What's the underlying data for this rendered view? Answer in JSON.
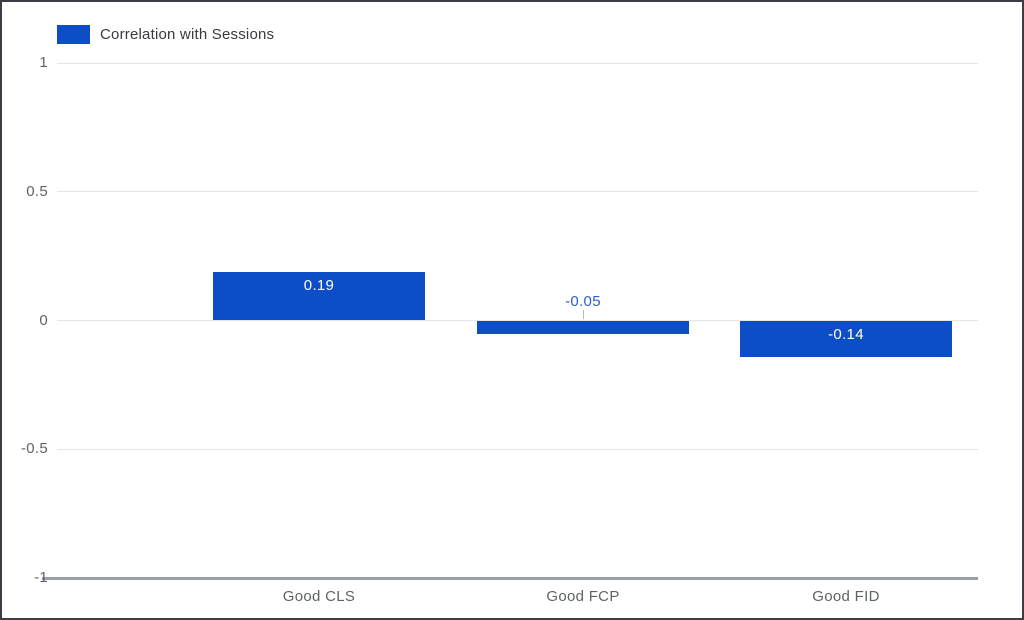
{
  "legend": {
    "label": "Correlation with Sessions"
  },
  "colors": {
    "bar": "#0d4dc6",
    "gridline": "#e5e5e9",
    "axis_line": "#9ba0a8",
    "tick_text": "#5f6368",
    "x_label_text": "#5f6368",
    "legend_text": "#3a3b40",
    "value_label_inside": "#ffffff",
    "value_label_outside": "#2b5ecf",
    "stem": "#b4b9c1",
    "frame_border": "#3c3c46",
    "background": "#ffffff"
  },
  "chart_data": {
    "type": "bar",
    "title": "",
    "categories": [
      "Good CLS",
      "Good FCP",
      "Good FID"
    ],
    "series": [
      {
        "name": "Correlation with Sessions",
        "values": [
          0.19,
          -0.05,
          -0.14
        ]
      }
    ],
    "value_labels": [
      "0.19",
      "-0.05",
      "-0.14"
    ],
    "xlabel": "",
    "ylabel": "",
    "ylim": [
      -1,
      1
    ],
    "yticks": [
      1,
      0.5,
      0,
      -0.5,
      -1
    ],
    "ytick_labels": [
      "1",
      "0.5",
      "0",
      "-0.5",
      "-1"
    ],
    "grid": true,
    "legend_position": "top-left"
  }
}
